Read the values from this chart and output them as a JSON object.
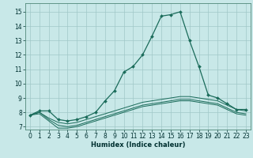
{
  "title": "",
  "xlabel": "Humidex (Indice chaleur)",
  "bg_color": "#c8e8e8",
  "grid_color": "#a0c8c8",
  "line_color": "#1a6b5a",
  "xlim": [
    -0.5,
    23.5
  ],
  "ylim": [
    6.8,
    15.6
  ],
  "yticks": [
    7,
    8,
    9,
    10,
    11,
    12,
    13,
    14,
    15
  ],
  "xticks": [
    0,
    1,
    2,
    3,
    4,
    5,
    6,
    7,
    8,
    9,
    10,
    11,
    12,
    13,
    14,
    15,
    16,
    17,
    18,
    19,
    20,
    21,
    22,
    23
  ],
  "line1_x": [
    0,
    1,
    2,
    3,
    4,
    5,
    6,
    7,
    8,
    9,
    10,
    11,
    12,
    13,
    14,
    15,
    16,
    17,
    18,
    19,
    20,
    21,
    22,
    23
  ],
  "line1_y": [
    7.8,
    8.1,
    8.1,
    7.5,
    7.4,
    7.5,
    7.7,
    8.0,
    8.8,
    9.5,
    10.8,
    11.2,
    12.0,
    13.3,
    14.7,
    14.8,
    15.0,
    13.0,
    11.2,
    9.2,
    9.0,
    8.6,
    8.2,
    8.2
  ],
  "line2_x": [
    0,
    1,
    2,
    3,
    4,
    5,
    6,
    7,
    8,
    9,
    10,
    11,
    12,
    13,
    14,
    15,
    16,
    17,
    18,
    19,
    20,
    21,
    22,
    23
  ],
  "line2_y": [
    7.8,
    8.0,
    7.6,
    7.3,
    7.2,
    7.3,
    7.5,
    7.7,
    7.9,
    8.1,
    8.3,
    8.5,
    8.7,
    8.8,
    8.9,
    9.0,
    9.1,
    9.1,
    9.0,
    8.9,
    8.8,
    8.5,
    8.2,
    8.1
  ],
  "line3_x": [
    0,
    1,
    2,
    3,
    4,
    5,
    6,
    7,
    8,
    9,
    10,
    11,
    12,
    13,
    14,
    15,
    16,
    17,
    18,
    19,
    20,
    21,
    22,
    23
  ],
  "line3_y": [
    7.8,
    8.0,
    7.5,
    7.1,
    7.0,
    7.1,
    7.3,
    7.5,
    7.7,
    7.9,
    8.1,
    8.3,
    8.5,
    8.6,
    8.7,
    8.8,
    8.9,
    8.9,
    8.8,
    8.7,
    8.6,
    8.3,
    8.0,
    7.9
  ],
  "line4_x": [
    0,
    1,
    2,
    3,
    4,
    5,
    6,
    7,
    8,
    9,
    10,
    11,
    12,
    13,
    14,
    15,
    16,
    17,
    18,
    19,
    20,
    21,
    22,
    23
  ],
  "line4_y": [
    7.8,
    7.9,
    7.4,
    6.9,
    6.9,
    7.0,
    7.2,
    7.4,
    7.6,
    7.8,
    8.0,
    8.2,
    8.4,
    8.5,
    8.6,
    8.7,
    8.8,
    8.8,
    8.7,
    8.6,
    8.5,
    8.2,
    7.9,
    7.8
  ],
  "tick_fontsize": 5.5,
  "xlabel_fontsize": 6.0
}
